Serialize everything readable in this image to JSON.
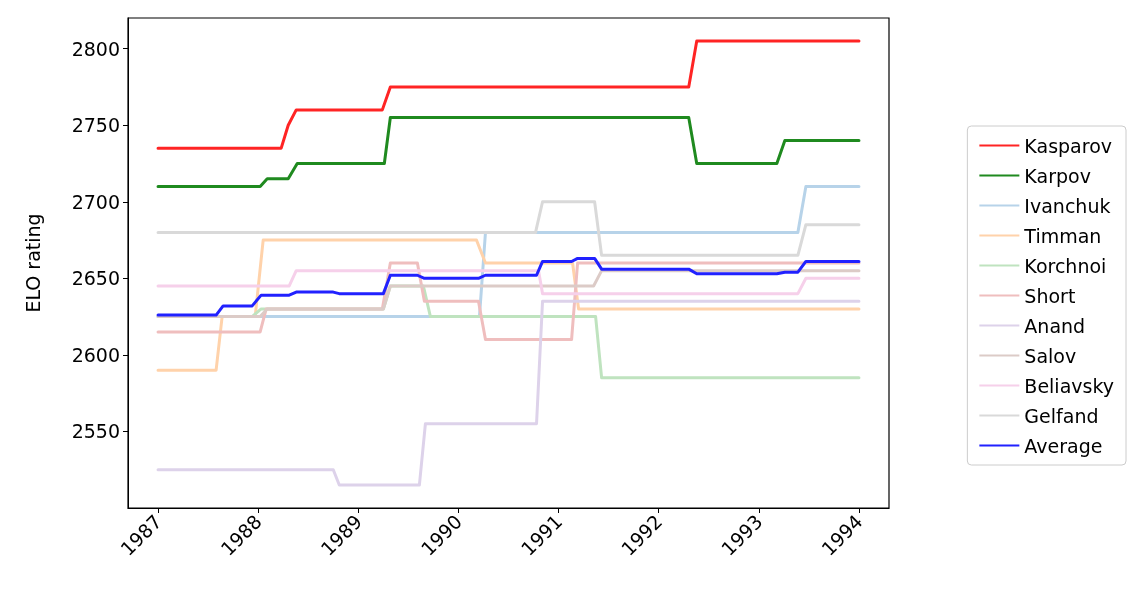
{
  "chart_data": {
    "type": "line",
    "ylabel": "ELO rating",
    "xlim": [
      1986.7,
      1994.3
    ],
    "xticks": [
      1987,
      1988,
      1989,
      1990,
      1991,
      1992,
      1993,
      1994
    ],
    "ylim": [
      2500,
      2820
    ],
    "yticks": [
      2550,
      2600,
      2650,
      2700,
      2750,
      2800
    ],
    "grid": false,
    "legend": "right",
    "marker": "none",
    "line_style": "solid",
    "series": [
      {
        "name": "Kasparov",
        "color": "#ff2424",
        "x": [
          1987,
          1988.23,
          1988.3,
          1988.38,
          1989.24,
          1989.32,
          1992.3,
          1992.38,
          1994
        ],
        "values": [
          2735,
          2735,
          2750,
          2760,
          2760,
          2775,
          2775,
          2805,
          2805
        ]
      },
      {
        "name": "Karpov",
        "color": "#1f8a1f",
        "x": [
          1987,
          1988.02,
          1988.09,
          1988.3,
          1988.39,
          1989.26,
          1989.32,
          1992.3,
          1992.38,
          1993.18,
          1993.26,
          1994
        ],
        "values": [
          2710,
          2710,
          2715,
          2715,
          2725,
          2725,
          2755,
          2755,
          2725,
          2725,
          2740,
          2740
        ]
      },
      {
        "name": "Ivanchuk",
        "color": "#b7d3e9",
        "x": [
          1987,
          1990.21,
          1990.27,
          1993.39,
          1993.47,
          1994
        ],
        "values": [
          2625,
          2625,
          2680,
          2680,
          2710,
          2710
        ]
      },
      {
        "name": "Timman",
        "color": "#ffd2aa",
        "x": [
          1987,
          1987.58,
          1987.64,
          1987.97,
          1988.05,
          1990.18,
          1990.27,
          1991.14,
          1991.2,
          1994
        ],
        "values": [
          2590,
          2590,
          2625,
          2625,
          2675,
          2675,
          2660,
          2660,
          2630,
          2630
        ]
      },
      {
        "name": "Korchnoi",
        "color": "#bfe3bf",
        "x": [
          1987,
          1987.94,
          1988.03,
          1989.25,
          1989.32,
          1989.65,
          1989.72,
          1991.37,
          1991.43,
          1994
        ],
        "values": [
          2625,
          2625,
          2630,
          2630,
          2645,
          2645,
          2625,
          2625,
          2585,
          2585
        ]
      },
      {
        "name": "Short",
        "color": "#efbebe",
        "x": [
          1987,
          1988.02,
          1988.08,
          1989.24,
          1989.32,
          1989.59,
          1989.66,
          1990.2,
          1990.27,
          1991.13,
          1991.19,
          1994
        ],
        "values": [
          2615,
          2615,
          2630,
          2630,
          2660,
          2660,
          2635,
          2635,
          2610,
          2610,
          2660,
          2660
        ]
      },
      {
        "name": "Anand",
        "color": "#ddd2ea",
        "x": [
          1987,
          1988.75,
          1988.81,
          1989.61,
          1989.67,
          1990.78,
          1990.84,
          1994
        ],
        "values": [
          2525,
          2525,
          2515,
          2515,
          2555,
          2555,
          2635,
          2635
        ]
      },
      {
        "name": "Salov",
        "color": "#dccbc7",
        "x": [
          1987,
          1988.02,
          1988.09,
          1989.25,
          1989.32,
          1991.35,
          1991.43,
          1994
        ],
        "values": [
          2625,
          2625,
          2630,
          2630,
          2645,
          2645,
          2655,
          2655
        ]
      },
      {
        "name": "Beliavsky",
        "color": "#f6d0ea",
        "x": [
          1987,
          1988.31,
          1988.38,
          1990.8,
          1990.84,
          1993.39,
          1993.47,
          1994
        ],
        "values": [
          2645,
          2645,
          2655,
          2655,
          2640,
          2640,
          2650,
          2650
        ]
      },
      {
        "name": "Gelfand",
        "color": "#d9d9d9",
        "x": [
          1987,
          1990.77,
          1990.84,
          1991.36,
          1991.43,
          1993.39,
          1993.47,
          1994
        ],
        "values": [
          2680,
          2680,
          2700,
          2700,
          2665,
          2665,
          2685,
          2685
        ]
      },
      {
        "name": "Average",
        "color": "#2121ff",
        "x": [
          1987,
          1987.58,
          1987.65,
          1987.94,
          1988.03,
          1988.31,
          1988.38,
          1988.75,
          1988.81,
          1989.25,
          1989.32,
          1989.59,
          1989.66,
          1990.2,
          1990.27,
          1990.78,
          1990.84,
          1991.13,
          1991.19,
          1991.36,
          1991.43,
          1992.3,
          1992.38,
          1993.18,
          1993.26,
          1993.39,
          1993.47,
          1994
        ],
        "values": [
          2626,
          2626,
          2632,
          2632,
          2639,
          2639,
          2641,
          2641,
          2640,
          2640,
          2652,
          2652,
          2650,
          2650,
          2652,
          2652,
          2661,
          2661,
          2663,
          2663,
          2656,
          2656,
          2653,
          2653,
          2654,
          2654,
          2661,
          2661
        ]
      }
    ]
  }
}
